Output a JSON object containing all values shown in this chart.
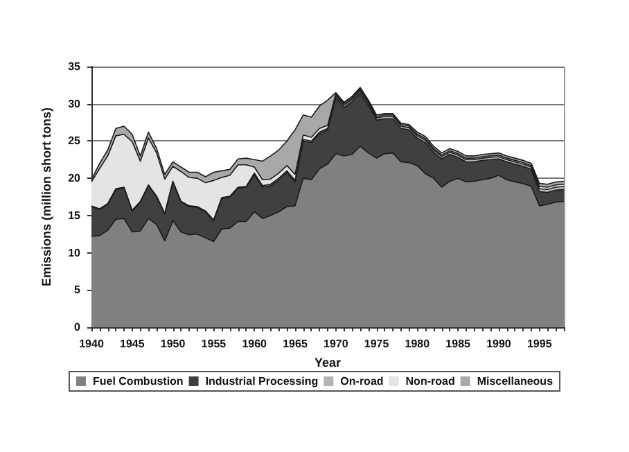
{
  "chart_data": {
    "type": "area",
    "stacked": true,
    "xlabel": "Year",
    "ylabel": "Emissions (million short tons)",
    "x": [
      1940,
      1941,
      1942,
      1943,
      1944,
      1945,
      1946,
      1947,
      1948,
      1949,
      1950,
      1951,
      1952,
      1953,
      1954,
      1955,
      1956,
      1957,
      1958,
      1959,
      1960,
      1961,
      1962,
      1963,
      1964,
      1965,
      1966,
      1967,
      1968,
      1969,
      1970,
      1971,
      1972,
      1973,
      1974,
      1975,
      1976,
      1977,
      1978,
      1979,
      1980,
      1981,
      1982,
      1983,
      1984,
      1985,
      1986,
      1987,
      1988,
      1989,
      1990,
      1991,
      1992,
      1993,
      1994,
      1995,
      1996,
      1997,
      1998
    ],
    "series": [
      {
        "name": "Fuel Combustion",
        "color": "#808080",
        "values": [
          12.2,
          12.3,
          13.0,
          14.5,
          14.6,
          12.8,
          12.9,
          14.6,
          13.8,
          11.6,
          14.3,
          12.8,
          12.4,
          12.5,
          12.0,
          11.5,
          13.2,
          13.3,
          14.2,
          14.2,
          15.5,
          14.6,
          15.0,
          15.5,
          16.2,
          16.3,
          20.0,
          19.8,
          21.3,
          21.9,
          23.3,
          23.0,
          23.2,
          24.3,
          23.4,
          22.7,
          23.3,
          23.4,
          22.2,
          22.1,
          21.7,
          20.6,
          20.0,
          18.8,
          19.6,
          20.0,
          19.5,
          19.6,
          19.8,
          20.0,
          20.4,
          19.8,
          19.5,
          19.3,
          18.9,
          16.3,
          16.5,
          16.8,
          16.9
        ]
      },
      {
        "name": "Industrial Processing",
        "color": "#404040",
        "values": [
          4.0,
          3.5,
          3.5,
          4.0,
          4.1,
          2.8,
          3.9,
          4.4,
          3.7,
          3.6,
          5.2,
          4.0,
          3.8,
          3.6,
          3.5,
          2.8,
          4.1,
          4.2,
          4.5,
          4.6,
          5.0,
          4.2,
          4.0,
          4.3,
          4.6,
          3.2,
          5.0,
          5.0,
          4.7,
          4.6,
          7.5,
          6.5,
          7.1,
          7.2,
          6.4,
          5.1,
          4.7,
          4.6,
          4.5,
          4.4,
          3.7,
          4.2,
          3.5,
          3.8,
          3.6,
          2.8,
          2.7,
          2.6,
          2.6,
          2.5,
          2.2,
          2.4,
          2.4,
          2.3,
          2.3,
          1.9,
          1.6,
          1.6,
          1.6
        ]
      },
      {
        "name": "On-road",
        "color": "#b4b4b4",
        "values": [
          0.1,
          0.1,
          0.1,
          0.1,
          0.1,
          0.1,
          0.1,
          0.1,
          0.1,
          0.1,
          0.1,
          0.1,
          0.1,
          0.1,
          0.1,
          0.1,
          0.1,
          0.1,
          0.1,
          0.1,
          0.2,
          0.2,
          0.2,
          0.2,
          0.2,
          0.2,
          0.2,
          0.2,
          0.2,
          0.2,
          0.3,
          0.3,
          0.3,
          0.3,
          0.3,
          0.3,
          0.3,
          0.3,
          0.3,
          0.3,
          0.3,
          0.3,
          0.3,
          0.3,
          0.3,
          0.3,
          0.3,
          0.3,
          0.3,
          0.3,
          0.3,
          0.3,
          0.3,
          0.3,
          0.3,
          0.4,
          0.4,
          0.4,
          0.4
        ]
      },
      {
        "name": "Non-road",
        "color": "#e4e4e4",
        "values": [
          3.2,
          5.4,
          6.4,
          7.1,
          7.1,
          9.2,
          5.4,
          6.3,
          5.8,
          4.6,
          2.0,
          4.0,
          3.8,
          3.8,
          3.8,
          5.3,
          2.7,
          2.8,
          3.0,
          2.9,
          0.8,
          0.8,
          0.7,
          0.7,
          0.7,
          0.8,
          0.6,
          0.5,
          0.5,
          0.4,
          0.2,
          0.2,
          0.2,
          0.2,
          0.2,
          0.2,
          0.2,
          0.2,
          0.2,
          0.2,
          0.2,
          0.2,
          0.2,
          0.2,
          0.2,
          0.2,
          0.2,
          0.2,
          0.2,
          0.2,
          0.2,
          0.2,
          0.2,
          0.2,
          0.2,
          0.3,
          0.3,
          0.3,
          0.3
        ]
      },
      {
        "name": "Miscellaneous",
        "color": "#a8a8a8",
        "values": [
          0.3,
          0.7,
          0.8,
          1.0,
          1.1,
          1.0,
          0.7,
          0.8,
          0.6,
          0.6,
          0.6,
          0.6,
          0.7,
          0.8,
          0.8,
          1.1,
          0.9,
          0.8,
          0.8,
          0.9,
          1.0,
          2.5,
          3.1,
          3.1,
          3.3,
          6.0,
          2.7,
          2.7,
          3.0,
          3.4,
          0.2,
          0.2,
          0.2,
          0.2,
          0.2,
          0.2,
          0.2,
          0.2,
          0.2,
          0.2,
          0.3,
          0.3,
          0.3,
          0.3,
          0.3,
          0.3,
          0.3,
          0.3,
          0.3,
          0.3,
          0.3,
          0.3,
          0.3,
          0.3,
          0.3,
          0.4,
          0.4,
          0.4,
          0.4
        ]
      }
    ],
    "xlim": [
      1940,
      1998
    ],
    "xticks": [
      1940,
      1945,
      1950,
      1955,
      1960,
      1965,
      1970,
      1975,
      1980,
      1985,
      1990,
      1995
    ],
    "ylim": [
      0,
      35
    ],
    "yticks": [
      0,
      5,
      10,
      15,
      20,
      25,
      30,
      35
    ],
    "grid": "y",
    "legend": "bottom",
    "marker": "none",
    "line_style": "solid"
  }
}
